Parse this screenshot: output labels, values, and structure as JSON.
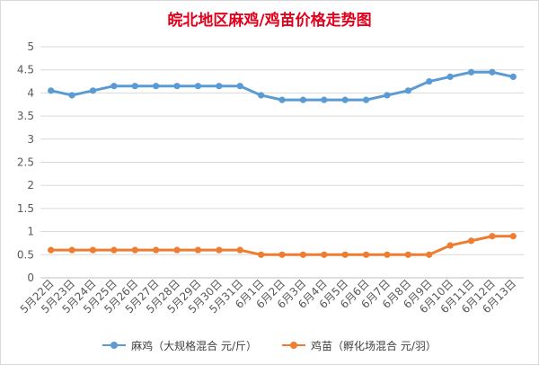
{
  "chart_data": {
    "type": "line",
    "title": "皖北地区麻鸡/鸡苗价格走势图",
    "categories": [
      "5月22日",
      "5月23日",
      "5月24日",
      "5月25日",
      "5月26日",
      "5月27日",
      "5月28日",
      "5月29日",
      "5月30日",
      "5月31日",
      "6月1日",
      "6月2日",
      "6月3日",
      "6月4日",
      "6月5日",
      "6月6日",
      "6月7日",
      "6月8日",
      "6月9日",
      "6月10日",
      "6月11日",
      "6月12日",
      "6月13日"
    ],
    "y_ticks": [
      "0",
      "0.5",
      "1",
      "1.5",
      "2",
      "2.5",
      "3",
      "3.5",
      "4",
      "4.5",
      "5"
    ],
    "ylim": [
      0,
      5
    ],
    "grid": true,
    "legend_position": "bottom",
    "series": [
      {
        "name": "麻鸡（大规格混合 元/斤）",
        "color": "#5b9bd5",
        "values": [
          4.05,
          3.95,
          4.05,
          4.15,
          4.15,
          4.15,
          4.15,
          4.15,
          4.15,
          4.15,
          3.95,
          3.85,
          3.85,
          3.85,
          3.85,
          3.85,
          3.95,
          4.05,
          4.25,
          4.35,
          4.45,
          4.45,
          4.35
        ]
      },
      {
        "name": "鸡苗（孵化场混合 元/羽）",
        "color": "#ed7d31",
        "values": [
          0.6,
          0.6,
          0.6,
          0.6,
          0.6,
          0.6,
          0.6,
          0.6,
          0.6,
          0.6,
          0.5,
          0.5,
          0.5,
          0.5,
          0.5,
          0.5,
          0.5,
          0.5,
          0.5,
          0.7,
          0.8,
          0.9,
          0.9
        ]
      }
    ]
  }
}
